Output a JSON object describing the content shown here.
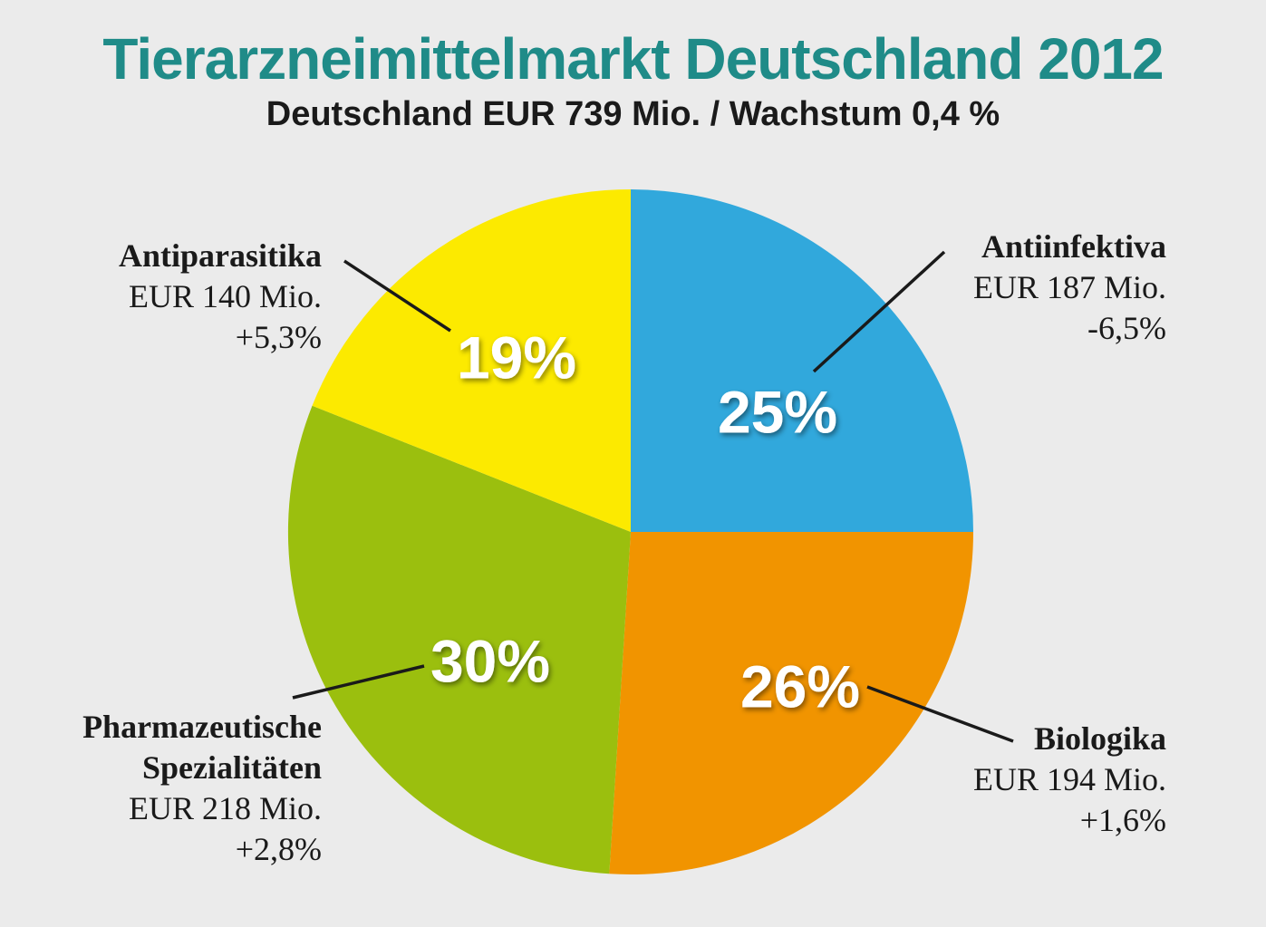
{
  "header": {
    "title": "Tierarzneimittelmarkt Deutschland 2012",
    "subtitle": "Deutschland EUR 739 Mio. / Wachstum 0,4 %"
  },
  "chart_data": {
    "type": "pie",
    "title": "Tierarzneimittelmarkt Deutschland 2012",
    "subtitle": "Deutschland EUR 739 Mio. / Wachstum 0,4 %",
    "slices": [
      {
        "name": "Antiinfektiva",
        "value": 25,
        "label": "25%",
        "amount": "EUR 187 Mio.",
        "growth": "-6,5%",
        "color": "#31a8dc"
      },
      {
        "name": "Biologika",
        "value": 26,
        "label": "26%",
        "amount": "EUR 194 Mio.",
        "growth": "+1,6%",
        "color": "#f19400"
      },
      {
        "name": "Pharmazeutische Spezialitäten",
        "name_lines": [
          "Pharmazeutische",
          "Spezialitäten"
        ],
        "value": 30,
        "label": "30%",
        "amount": "EUR 218 Mio.",
        "growth": "+2,8%",
        "color": "#9bbf0e"
      },
      {
        "name": "Antiparasitika",
        "value": 19,
        "label": "19%",
        "amount": "EUR 140 Mio.",
        "growth": "+5,3%",
        "color": "#fcea00"
      }
    ]
  }
}
